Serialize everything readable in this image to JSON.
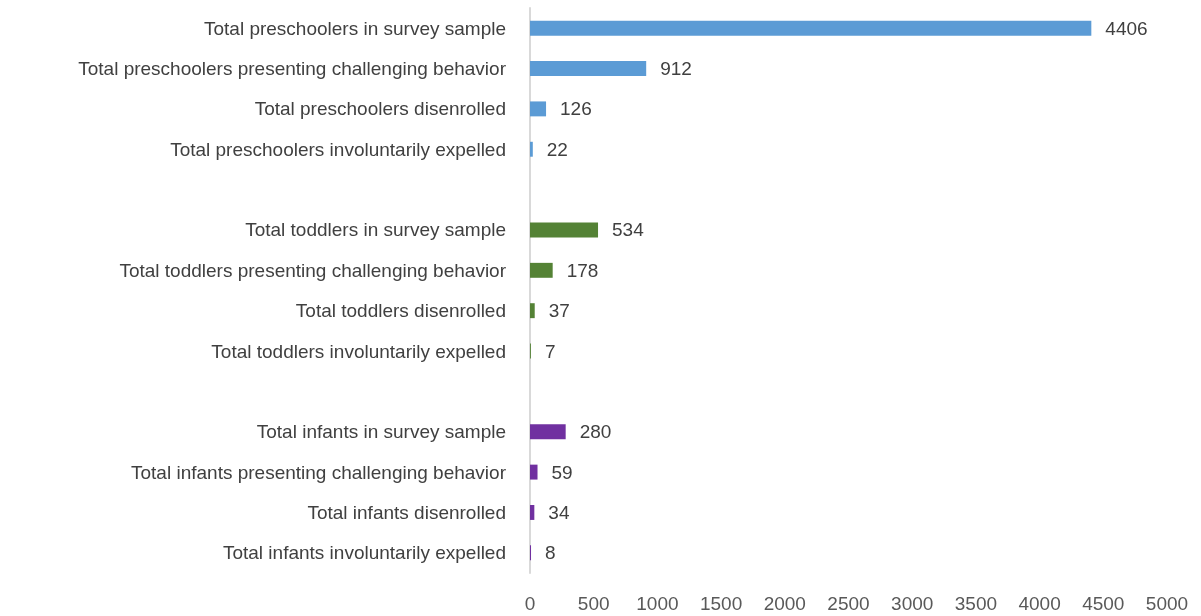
{
  "chart_data": {
    "type": "bar",
    "orientation": "horizontal",
    "categories": [
      "Total preschoolers in survey sample",
      "Total preschoolers presenting challenging behavior",
      "Total preschoolers disenrolled",
      "Total preschoolers involuntarily expelled",
      null,
      "Total toddlers in survey sample",
      "Total toddlers presenting challenging behavior",
      "Total toddlers disenrolled",
      "Total toddlers involuntarily expelled",
      null,
      "Total infants in survey sample",
      "Total infants presenting challenging behavior",
      "Total infants disenrolled",
      "Total infants involuntarily expelled"
    ],
    "values": [
      4406,
      912,
      126,
      22,
      null,
      534,
      178,
      37,
      7,
      null,
      280,
      59,
      34,
      8
    ],
    "colors": [
      "#5b9bd5",
      "#5b9bd5",
      "#5b9bd5",
      "#5b9bd5",
      null,
      "#548235",
      "#548235",
      "#548235",
      "#548235",
      null,
      "#7030a0",
      "#7030a0",
      "#7030a0",
      "#7030a0"
    ],
    "xlim": [
      0,
      5000
    ],
    "xticks": [
      0,
      500,
      1000,
      1500,
      2000,
      2500,
      3000,
      3500,
      4000,
      4500,
      5000
    ],
    "data_labels": true,
    "grid": false
  }
}
